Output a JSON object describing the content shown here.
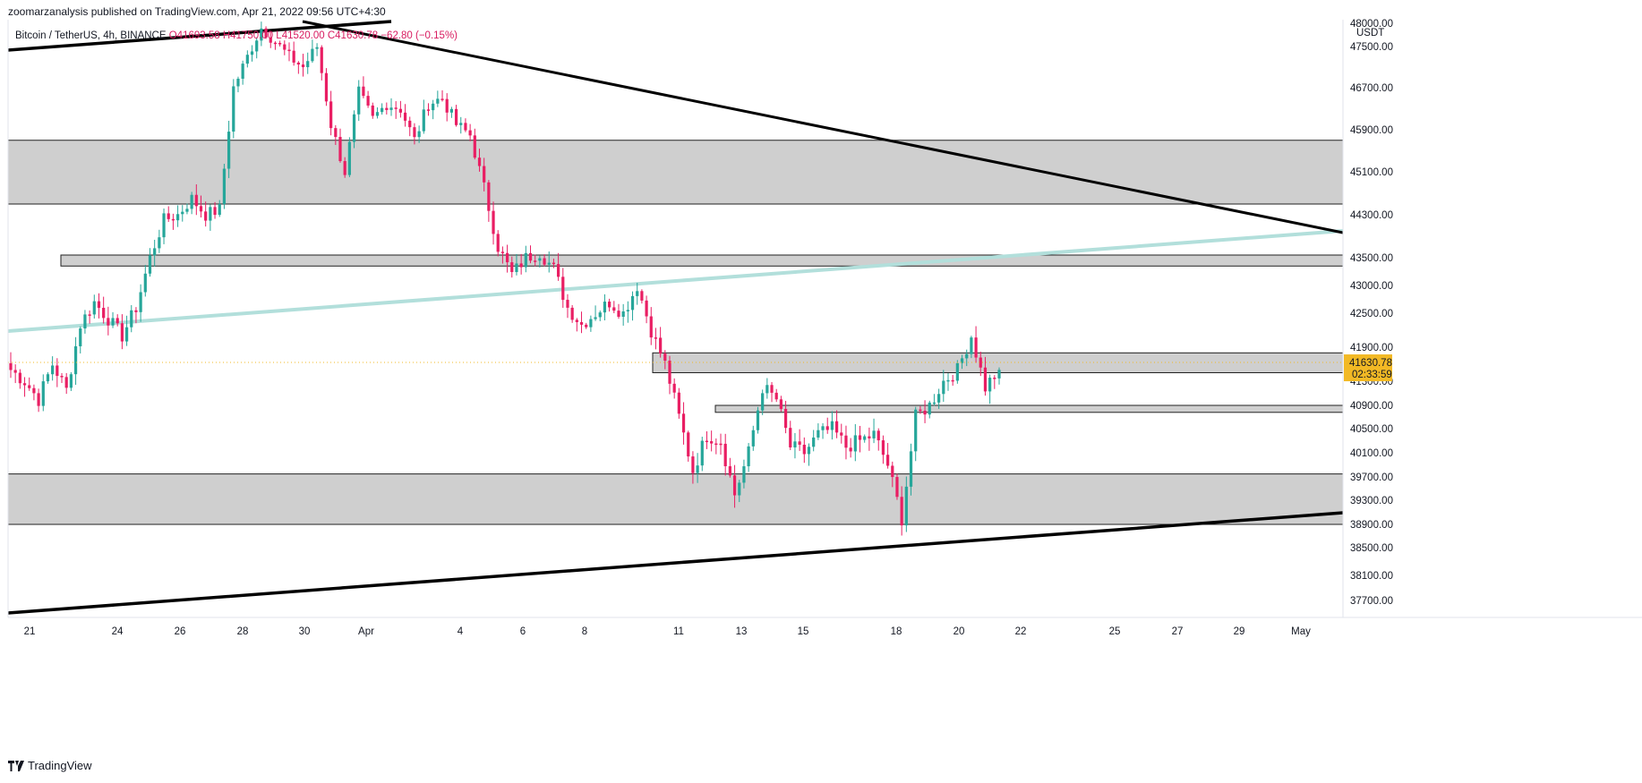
{
  "header": {
    "publisher_line": "zoomarzanalysis published on TradingView.com, Apr 21, 2022 09:56 UTC+4:30"
  },
  "legend": {
    "symbol": "Bitcoin / TetherUS, 4h, BINANCE",
    "ohlc": "O41693.58 H41750.00 L41520.00 C41630.78 −62.80 (−0.15%)"
  },
  "footer": {
    "brand": "TradingView"
  },
  "colors": {
    "up": "#26a69a",
    "down": "#e91e63",
    "zone_fill": "#cfcfcf",
    "trendline": "#000000",
    "ma_line": "#b2dfdb",
    "price_tag": "#f2b925"
  },
  "chart_data": {
    "type": "candlestick",
    "title": "Bitcoin / TetherUS, 4h, BINANCE",
    "currency": "USDT",
    "ylim": [
      37300,
      48000
    ],
    "y_ticks": [
      48000,
      47500,
      46700,
      45900,
      45100,
      44300,
      43500,
      43000,
      42500,
      41900,
      41300,
      40900,
      40500,
      40100,
      39700,
      39300,
      38900,
      38500,
      38100,
      37700
    ],
    "x_ticks": [
      "21",
      "24",
      "26",
      "28",
      "30",
      "Apr",
      "4",
      "6",
      "8",
      "11",
      "13",
      "15",
      "18",
      "20",
      "22",
      "25",
      "27",
      "29",
      "May"
    ],
    "current_price": {
      "price": "41630.78",
      "countdown": "02:33:59"
    },
    "candle_anchors_close": [
      41500,
      41300,
      41000,
      41600,
      41150,
      42300,
      42700,
      42400,
      42100,
      42600,
      43500,
      44200,
      44300,
      44600,
      44300,
      44400,
      46700,
      47300,
      47900,
      47600,
      47300,
      47100,
      47500,
      46000,
      45100,
      46600,
      46100,
      46400,
      46300,
      45700,
      46400,
      46500,
      46000,
      45800,
      44800,
      43700,
      43200,
      43500,
      43600,
      43300,
      42600,
      42300,
      42500,
      42700,
      42500,
      43000,
      42200,
      41600,
      40700,
      39800,
      40400,
      40300,
      39400,
      40100,
      41200,
      41000,
      40200,
      40100,
      40400,
      40500,
      40200,
      40300,
      40400,
      39900,
      39000,
      40700,
      40900,
      41300,
      41500,
      42100,
      41200,
      41500
    ],
    "zones": [
      {
        "name": "upper-resistance-zone",
        "top": 45700,
        "bottom": 44500
      },
      {
        "name": "mid-resistance-zone",
        "top": 43550,
        "bottom": 43350
      },
      {
        "name": "current-resistance-zone",
        "top": 41800,
        "bottom": 41450
      },
      {
        "name": "support-line-zone",
        "top": 40900,
        "bottom": 40780
      },
      {
        "name": "lower-support-zone",
        "top": 39750,
        "bottom": 38900
      }
    ],
    "trendlines": [
      {
        "name": "descending-resistance-line",
        "color": "black"
      },
      {
        "name": "ascending-support-line",
        "color": "black"
      },
      {
        "name": "rising-mint-line",
        "color": "mint"
      }
    ]
  }
}
